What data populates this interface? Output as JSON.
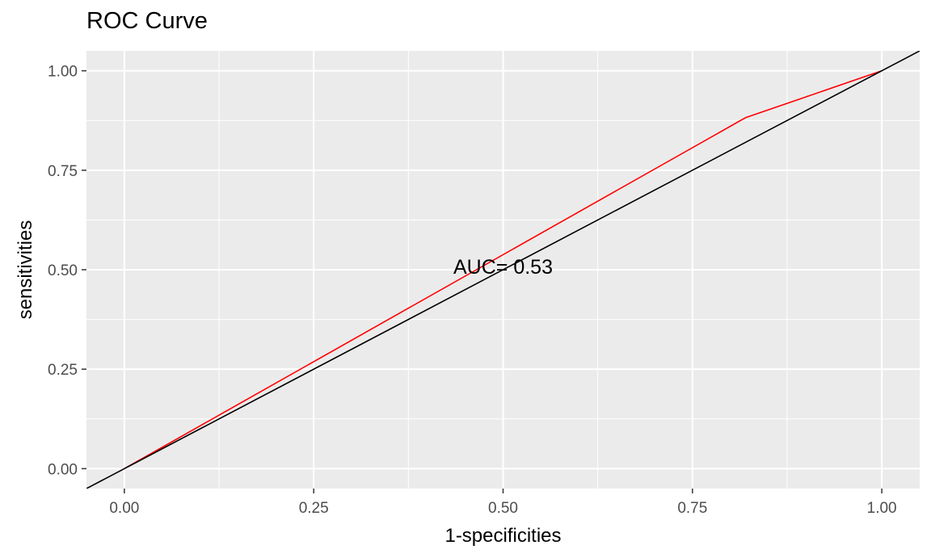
{
  "chart_data": {
    "type": "line",
    "title": "ROC Curve",
    "xlabel": "1-specificities",
    "ylabel": "sensitivities",
    "xlim": [
      -0.05,
      1.05
    ],
    "ylim": [
      -0.05,
      1.05
    ],
    "x_ticks": [
      0,
      0.25,
      0.5,
      0.75,
      1
    ],
    "x_tick_labels": [
      "0.00",
      "0.25",
      "0.50",
      "0.75",
      "1.00"
    ],
    "y_ticks": [
      0,
      0.25,
      0.5,
      0.75,
      1
    ],
    "y_tick_labels": [
      "0.00",
      "0.25",
      "0.50",
      "0.75",
      "1.00"
    ],
    "grid": true,
    "background": "#ebebeb",
    "grid_color": "#ffffff",
    "series": [
      {
        "color": "#ff0000",
        "x": [
          0,
          0.82,
          1
        ],
        "y": [
          0,
          0.882,
          1
        ]
      }
    ],
    "reference_line": {
      "color": "#000000",
      "intercept": 0,
      "slope": 1
    },
    "annotation": {
      "text": "AUC= 0.53",
      "x": 0.5,
      "y": 0.49
    }
  }
}
